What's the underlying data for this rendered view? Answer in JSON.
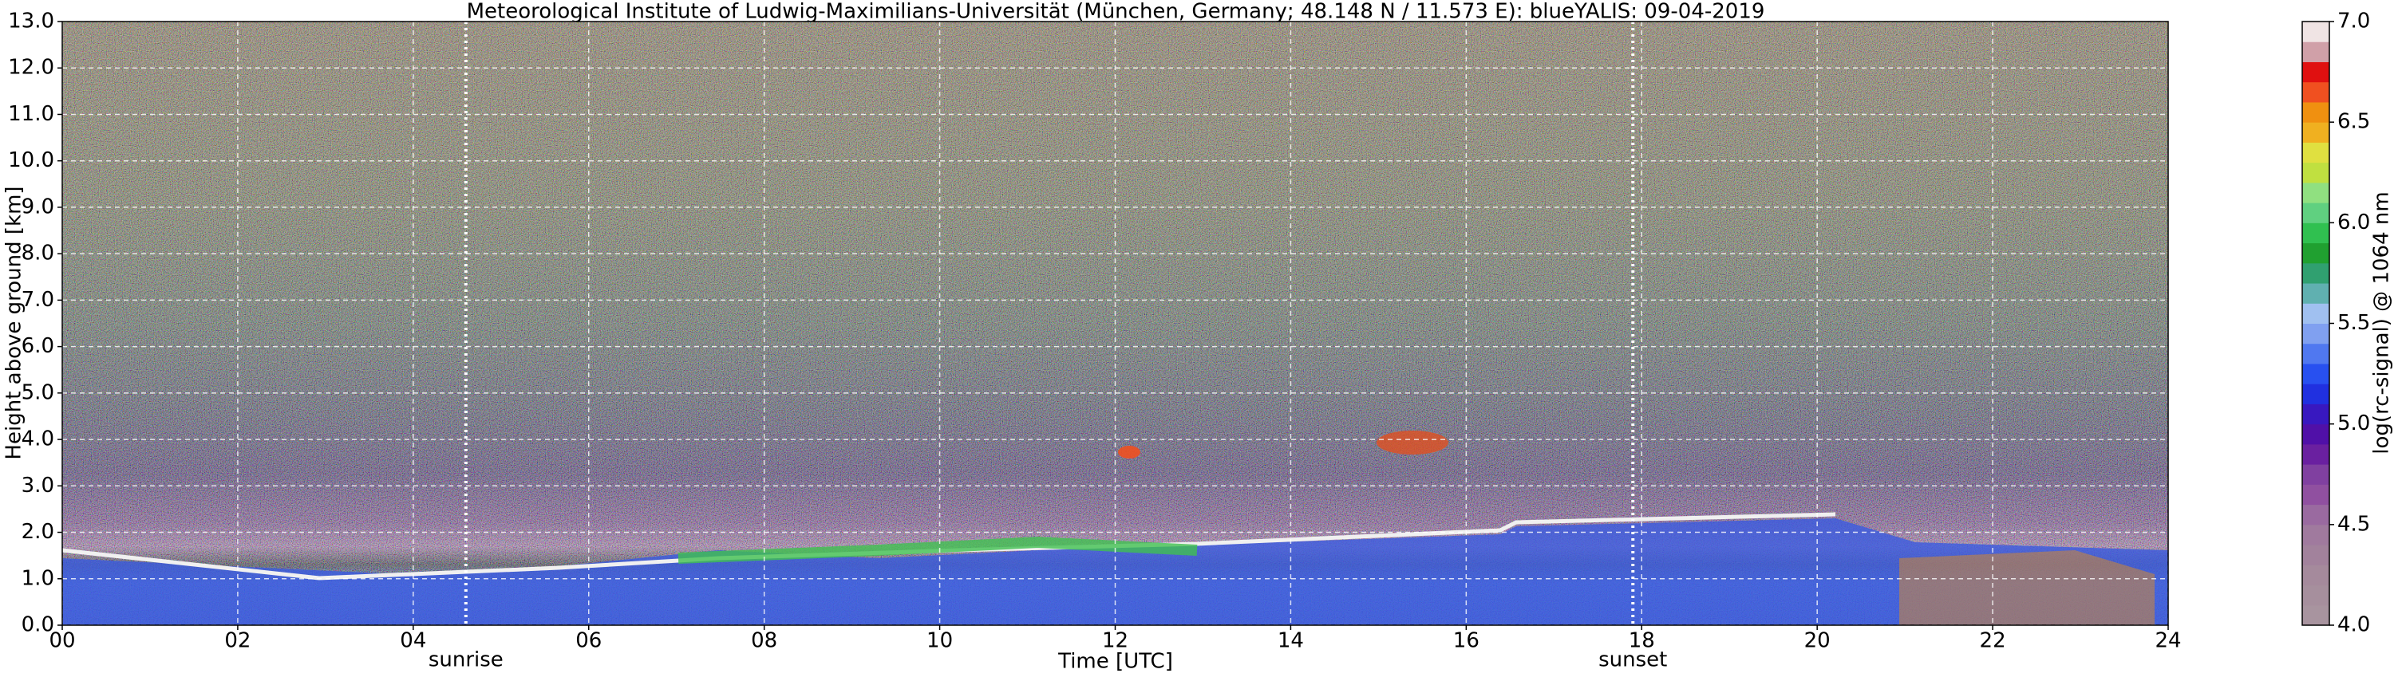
{
  "chart_data": {
    "type": "heatmap",
    "title": "Meteorological Institute of Ludwig-Maximilians-Universität (München, Germany; 48.148 N / 11.573 E):    blueYALIS: 09-04-2019",
    "x_label": "Time [UTC]",
    "y_label": "Height above ground [km]",
    "xlim": [
      0,
      24
    ],
    "xticks": [
      {
        "value": 0,
        "label": "00"
      },
      {
        "value": 2,
        "label": "02"
      },
      {
        "value": 4,
        "label": "04"
      },
      {
        "value": 6,
        "label": "06"
      },
      {
        "value": 8,
        "label": "08"
      },
      {
        "value": 10,
        "label": "10"
      },
      {
        "value": 12,
        "label": "12"
      },
      {
        "value": 14,
        "label": "14"
      },
      {
        "value": 16,
        "label": "16"
      },
      {
        "value": 18,
        "label": "18"
      },
      {
        "value": 20,
        "label": "20"
      },
      {
        "value": 22,
        "label": "22"
      },
      {
        "value": 24,
        "label": "24"
      }
    ],
    "ylim": [
      0,
      13
    ],
    "yticks": [
      {
        "value": 0,
        "label": "0.0"
      },
      {
        "value": 1,
        "label": "1.0"
      },
      {
        "value": 2,
        "label": "2.0"
      },
      {
        "value": 3,
        "label": "3.0"
      },
      {
        "value": 4,
        "label": "4.0"
      },
      {
        "value": 5,
        "label": "5.0"
      },
      {
        "value": 6,
        "label": "6.0"
      },
      {
        "value": 7,
        "label": "7.0"
      },
      {
        "value": 8,
        "label": "8.0"
      },
      {
        "value": 9,
        "label": "9.0"
      },
      {
        "value": 10,
        "label": "10.0"
      },
      {
        "value": 11,
        "label": "11.0"
      },
      {
        "value": 12,
        "label": "12.0"
      },
      {
        "value": 13,
        "label": "13.0"
      }
    ],
    "grid": true,
    "annotations": [
      {
        "text": "sunrise",
        "x": 4.6
      },
      {
        "text": "sunset",
        "x": 17.9
      }
    ],
    "colorbar": {
      "label": "log(rc-signal) @ 1064 nm",
      "lim": [
        4,
        7
      ],
      "ticks": [
        {
          "value": 4,
          "label": "4.0"
        },
        {
          "value": 4.5,
          "label": "4.5"
        },
        {
          "value": 5,
          "label": "5.0"
        },
        {
          "value": 5.5,
          "label": "5.5"
        },
        {
          "value": 6,
          "label": "6.0"
        },
        {
          "value": 6.5,
          "label": "6.5"
        },
        {
          "value": 7,
          "label": "7.0"
        }
      ],
      "colors": [
        "#a8949f",
        "#a68f9d",
        "#a58a9c",
        "#a2829c",
        "#a07a9e",
        "#9a6aa0",
        "#9050a0",
        "#8040a0",
        "#6a20a0",
        "#5010a8",
        "#3818c0",
        "#2030e0",
        "#2850f0",
        "#5078f0",
        "#80a0f0",
        "#a0c0f0",
        "#60b0b0",
        "#30a070",
        "#20a030",
        "#30c050",
        "#60d080",
        "#90e080",
        "#c0e040",
        "#e0e040",
        "#f0b020",
        "#f09010",
        "#f05020",
        "#e01010",
        "#d0a0a8",
        "#f0e4e4"
      ]
    }
  }
}
